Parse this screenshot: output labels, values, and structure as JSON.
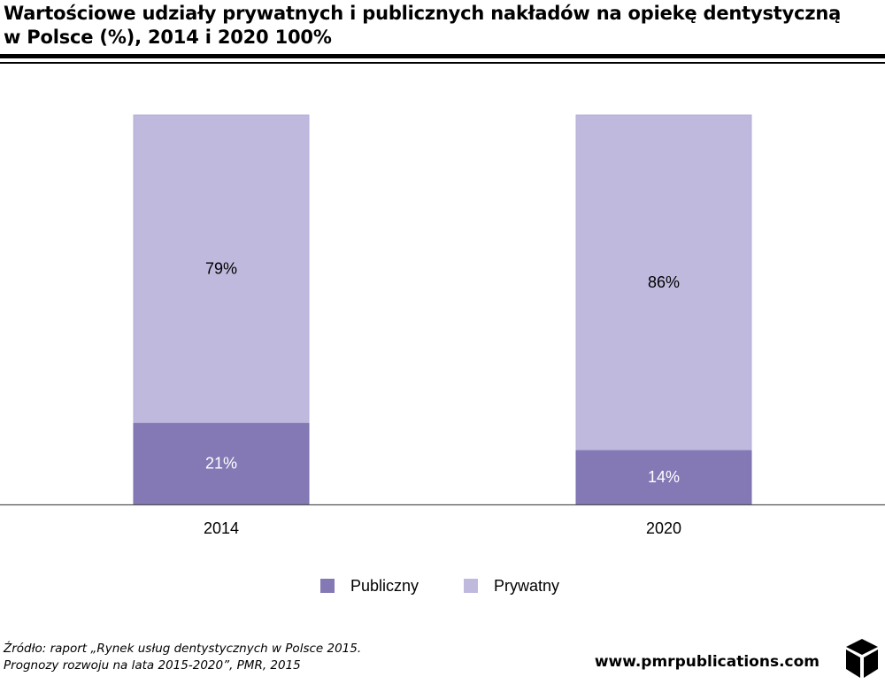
{
  "header": {
    "title_line1": "Wartościowe udziały prywatnych i publicznych nakładów na opiekę dentystyczną",
    "title_line2": "w Polsce (%), 2014 i 2020 100%"
  },
  "chart_data": {
    "type": "bar",
    "stacked": true,
    "categories": [
      "2014",
      "2020"
    ],
    "series": [
      {
        "name": "Publiczny",
        "values": [
          21,
          14
        ],
        "labels": [
          "21%",
          "14%"
        ],
        "color": "#8479b5",
        "label_color": "#ffffff"
      },
      {
        "name": "Prywatny",
        "values": [
          79,
          86
        ],
        "labels": [
          "79%",
          "86%"
        ],
        "color": "#bfb9de",
        "label_color": "#000000"
      }
    ],
    "ylim": [
      0,
      100
    ],
    "legend": "bottom-center",
    "grid": false
  },
  "footer": {
    "source_line1": "Źródło: raport „Rynek usług dentystycznych w Polsce 2015.",
    "source_line2": "Prognozy rozwoju na lata 2015-2020”, PMR, 2015",
    "website": "www.pmrpublications.com",
    "logo_icon": "pmr-cube-icon"
  }
}
